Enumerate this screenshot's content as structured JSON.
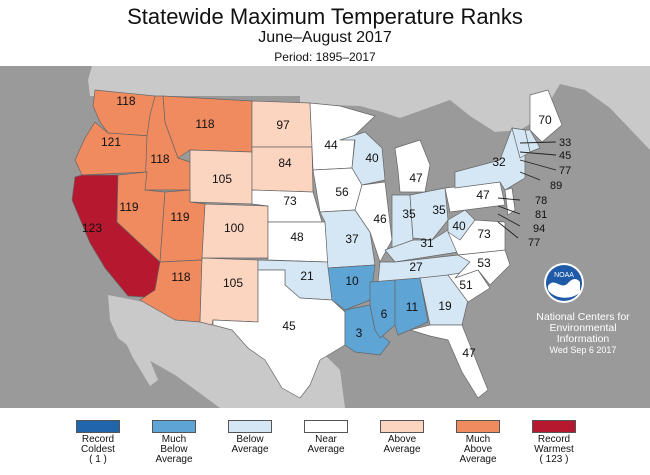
{
  "header": {
    "title": "Statewide Maximum Temperature Ranks",
    "subtitle": "June–August 2017",
    "period": "Period: 1895–2017"
  },
  "colors": {
    "record_coldest": "#2166ac",
    "much_below": "#5ea4d4",
    "below": "#d5e7f4",
    "near": "#ffffff",
    "above": "#fbd5c0",
    "much_above": "#f08a5f",
    "record_warmest": "#b5182f",
    "ocean": "#9a9a9a",
    "foreign_land": "#c9c9c9"
  },
  "states": [
    {
      "id": "WA",
      "rank": "118",
      "category": "much_above"
    },
    {
      "id": "OR",
      "rank": "121",
      "category": "much_above"
    },
    {
      "id": "CA",
      "rank": "123",
      "category": "record_warmest"
    },
    {
      "id": "ID",
      "rank": "118",
      "category": "much_above"
    },
    {
      "id": "NV",
      "rank": "119",
      "category": "much_above"
    },
    {
      "id": "MT",
      "rank": "118",
      "category": "much_above"
    },
    {
      "id": "WY",
      "rank": "105",
      "category": "above"
    },
    {
      "id": "UT",
      "rank": "119",
      "category": "much_above"
    },
    {
      "id": "AZ",
      "rank": "118",
      "category": "much_above"
    },
    {
      "id": "CO",
      "rank": "100",
      "category": "above"
    },
    {
      "id": "NM",
      "rank": "105",
      "category": "above"
    },
    {
      "id": "ND",
      "rank": "97",
      "category": "above"
    },
    {
      "id": "SD",
      "rank": "84",
      "category": "above"
    },
    {
      "id": "NE",
      "rank": "73",
      "category": "near"
    },
    {
      "id": "KS",
      "rank": "48",
      "category": "near"
    },
    {
      "id": "OK",
      "rank": "21",
      "category": "below"
    },
    {
      "id": "TX",
      "rank": "45",
      "category": "near"
    },
    {
      "id": "MN",
      "rank": "44",
      "category": "near"
    },
    {
      "id": "IA",
      "rank": "56",
      "category": "near"
    },
    {
      "id": "MO",
      "rank": "37",
      "category": "below"
    },
    {
      "id": "AR",
      "rank": "10",
      "category": "much_below"
    },
    {
      "id": "LA",
      "rank": "3",
      "category": "much_below"
    },
    {
      "id": "WI",
      "rank": "40",
      "category": "below"
    },
    {
      "id": "IL",
      "rank": "46",
      "category": "near"
    },
    {
      "id": "MI",
      "rank": "47",
      "category": "near"
    },
    {
      "id": "IN",
      "rank": "35",
      "category": "below"
    },
    {
      "id": "OH",
      "rank": "35",
      "category": "below"
    },
    {
      "id": "KY",
      "rank": "31",
      "category": "below"
    },
    {
      "id": "TN",
      "rank": "27",
      "category": "below"
    },
    {
      "id": "MS",
      "rank": "6",
      "category": "much_below"
    },
    {
      "id": "AL",
      "rank": "11",
      "category": "much_below"
    },
    {
      "id": "GA",
      "rank": "19",
      "category": "below"
    },
    {
      "id": "FL",
      "rank": "47",
      "category": "near"
    },
    {
      "id": "SC",
      "rank": "51",
      "category": "near"
    },
    {
      "id": "NC",
      "rank": "53",
      "category": "near"
    },
    {
      "id": "VA",
      "rank": "73",
      "category": "near"
    },
    {
      "id": "WV",
      "rank": "40",
      "category": "below"
    },
    {
      "id": "PA",
      "rank": "47",
      "category": "near"
    },
    {
      "id": "NY",
      "rank": "32",
      "category": "below"
    },
    {
      "id": "ME",
      "rank": "70",
      "category": "near"
    },
    {
      "id": "NH",
      "rank": "",
      "category": "below"
    },
    {
      "id": "VT",
      "rank": "",
      "category": "below"
    },
    {
      "id": "NJ",
      "rank": "",
      "category": "near"
    }
  ],
  "callouts": [
    {
      "id": "NH",
      "rank": "33",
      "category": "below"
    },
    {
      "id": "MA",
      "rank": "45",
      "category": "near"
    },
    {
      "id": "RI",
      "rank": "77",
      "category": "near"
    },
    {
      "id": "CT",
      "rank": "89",
      "category": "above"
    },
    {
      "id": "NJ",
      "rank": "78",
      "category": "near"
    },
    {
      "id": "DE",
      "rank": "81",
      "category": "near"
    },
    {
      "id": "MD",
      "rank": "94",
      "category": "above"
    },
    {
      "id": "VA-small",
      "rank": "77",
      "category": "near"
    }
  ],
  "logo": {
    "text": "NOAA"
  },
  "credit": {
    "line1": "National Centers for",
    "line2": "Environmental",
    "line3": "Information",
    "date": "Wed Sep  6 2017"
  },
  "legend": [
    {
      "label": "Record\nColdest\n( 1 )",
      "color_key": "record_coldest"
    },
    {
      "label": "Much\nBelow\nAverage",
      "color_key": "much_below"
    },
    {
      "label": "Below\nAverage",
      "color_key": "below"
    },
    {
      "label": "Near\nAverage",
      "color_key": "near"
    },
    {
      "label": "Above\nAverage",
      "color_key": "above"
    },
    {
      "label": "Much\nAbove\nAverage",
      "color_key": "much_above"
    },
    {
      "label": "Record\nWarmest\n( 123 )",
      "color_key": "record_warmest"
    }
  ]
}
